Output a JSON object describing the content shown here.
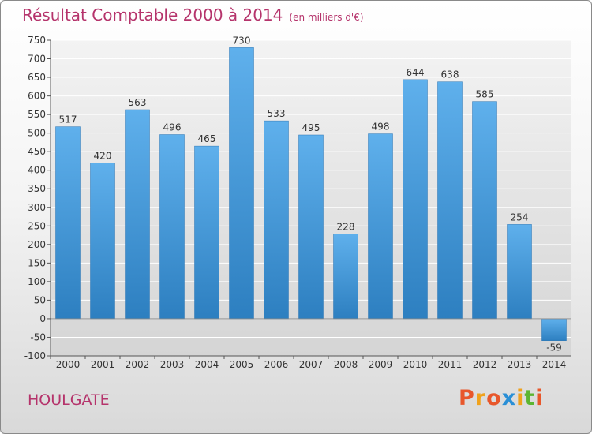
{
  "header": {
    "title": "Résultat Comptable 2000 à 2014",
    "unit": "(en milliers d'€)"
  },
  "footer": {
    "city": "HOULGATE",
    "logo": "Proxiti",
    "logo_colors": [
      "#e8572b",
      "#f0a21c",
      "#e8572b",
      "#2a8fd6",
      "#f0a21c",
      "#5cb531",
      "#e8572b"
    ]
  },
  "chart_data": {
    "type": "bar",
    "categories": [
      "2000",
      "2001",
      "2002",
      "2003",
      "2004",
      "2005",
      "2006",
      "2007",
      "2008",
      "2009",
      "2010",
      "2011",
      "2012",
      "2013",
      "2014"
    ],
    "values": [
      517,
      420,
      563,
      496,
      465,
      730,
      533,
      495,
      228,
      498,
      644,
      638,
      585,
      254,
      -59
    ],
    "ylim": [
      -100,
      750
    ],
    "yticks": [
      750,
      700,
      650,
      600,
      550,
      500,
      450,
      400,
      350,
      300,
      250,
      200,
      150,
      100,
      50,
      0,
      -50,
      -100
    ],
    "grid": true,
    "bar_color_top": "#5fb0ec",
    "bar_color_bottom": "#2d7fc0",
    "grid_color": "#ffffff",
    "plot_background": "#dcdcdc"
  }
}
